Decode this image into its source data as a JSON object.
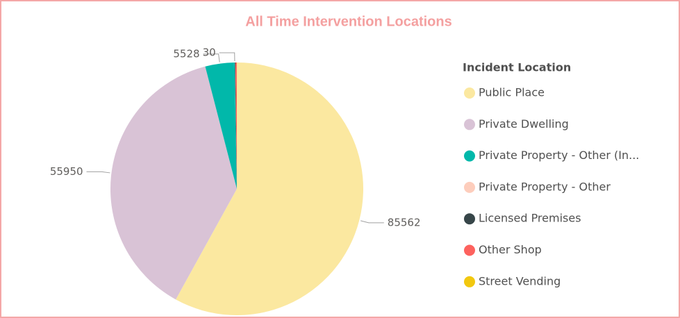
{
  "chart_data": {
    "type": "pie",
    "title": "All Time Intervention Locations",
    "legend_title": "Incident Location",
    "categories": [
      "Public Place",
      "Private Dwelling",
      "Private Property - Other (In...",
      "Private Property - Other",
      "Licensed Premises",
      "Other Shop",
      "Street Vending"
    ],
    "values": [
      85562,
      55950,
      5528,
      30,
      120,
      250,
      10
    ],
    "value_labels": [
      "85562",
      "55950",
      "5528",
      "30",
      null,
      null,
      null
    ],
    "colors": [
      "#FBE8A0",
      "#D9C3D6",
      "#01B8AA",
      "#FDCDBC",
      "#374649",
      "#FD625E",
      "#F2C80F"
    ],
    "legend": "right"
  }
}
